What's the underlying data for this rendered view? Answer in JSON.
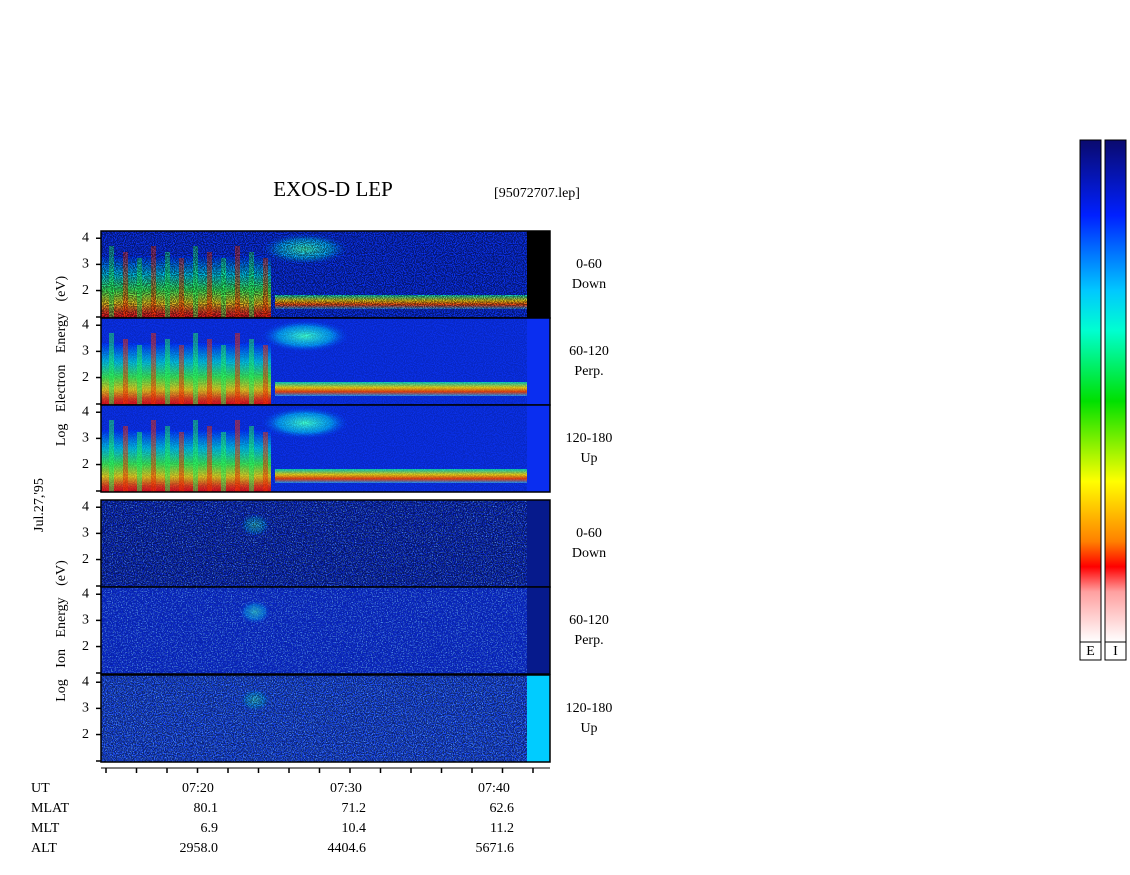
{
  "chart_data": {
    "type": "spectrogram",
    "title": "EXOS-D LEP",
    "file": "[95072707.lep]",
    "date": "Jul.27,'95",
    "ylim": [
      0.95,
      4.2
    ],
    "yticks": [
      2,
      3,
      4
    ],
    "species_labels": [
      "Log Electron Energy (eV)",
      "Log Ion Energy (eV)"
    ],
    "panels": [
      {
        "species": 0,
        "pitch": "0-60",
        "direction": "Down",
        "strip": "#000000"
      },
      {
        "species": 0,
        "pitch": "60-120",
        "direction": "Perp.",
        "strip": "#0a2ef0"
      },
      {
        "species": 0,
        "pitch": "120-180",
        "direction": "Up",
        "strip": "#0a2ef0"
      },
      {
        "species": 1,
        "pitch": "0-60",
        "direction": "Down",
        "strip": "#061a8c"
      },
      {
        "species": 1,
        "pitch": "60-120",
        "direction": "Perp.",
        "strip": "#061a8c"
      },
      {
        "species": 1,
        "pitch": "120-180",
        "direction": "Up",
        "strip": "#00ccff"
      }
    ],
    "ephemeris": {
      "rows": [
        {
          "name": "UT",
          "values": [
            "07:20",
            "07:30",
            "07:40"
          ]
        },
        {
          "name": "MLAT",
          "values": [
            "80.1",
            "71.2",
            "62.6"
          ]
        },
        {
          "name": "MLT",
          "values": [
            "6.9",
            "10.4",
            "11.2"
          ]
        },
        {
          "name": "ALT",
          "values": [
            "2958.0",
            "4404.6",
            "5671.6"
          ]
        }
      ]
    },
    "colorbar_labels": [
      "E",
      "I"
    ]
  }
}
